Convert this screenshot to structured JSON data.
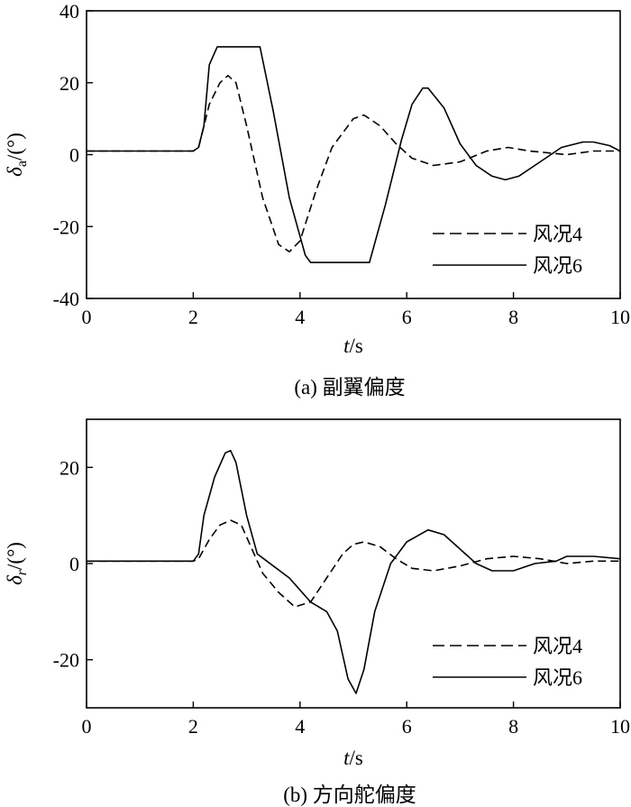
{
  "chart_data": [
    {
      "type": "line",
      "id": "a",
      "caption": "(a) 副翼偏度",
      "xlabel": "t/s",
      "ylabel": "δa/(°)",
      "xlim": [
        0,
        10
      ],
      "ylim": [
        -40,
        40
      ],
      "xticks": [
        0,
        2,
        4,
        6,
        8,
        10
      ],
      "yticks": [
        -40,
        -20,
        0,
        20,
        40
      ],
      "grid": false,
      "legend_position": "bottom-right",
      "series": [
        {
          "name": "风况4",
          "style": "dashed",
          "x": [
            0,
            2.0,
            2.1,
            2.3,
            2.5,
            2.65,
            2.8,
            3.0,
            3.3,
            3.6,
            3.8,
            4.0,
            4.3,
            4.6,
            5.0,
            5.2,
            5.5,
            5.8,
            6.1,
            6.5,
            7.0,
            7.5,
            7.9,
            8.3,
            9.0,
            9.5,
            10.0
          ],
          "y": [
            1,
            1,
            2,
            14,
            20,
            22,
            20,
            8,
            -12,
            -25,
            -27,
            -24,
            -10,
            2,
            10,
            11,
            8,
            3,
            -1,
            -3,
            -2,
            1,
            2,
            1,
            0,
            1,
            1
          ]
        },
        {
          "name": "风况6",
          "style": "solid",
          "x": [
            0,
            2.0,
            2.1,
            2.2,
            2.3,
            2.45,
            3.25,
            3.5,
            3.8,
            4.1,
            4.2,
            5.3,
            5.6,
            5.9,
            6.1,
            6.3,
            6.4,
            6.7,
            7.0,
            7.3,
            7.6,
            7.85,
            8.1,
            8.5,
            8.9,
            9.3,
            9.5,
            9.8,
            10.0
          ],
          "y": [
            1,
            1,
            2,
            8,
            25,
            30,
            30,
            12,
            -12,
            -28,
            -30,
            -30,
            -14,
            4,
            14,
            18.5,
            18.5,
            13,
            3,
            -3,
            -6,
            -7,
            -6,
            -2,
            2,
            3.5,
            3.5,
            2.5,
            1
          ]
        }
      ]
    },
    {
      "type": "line",
      "id": "b",
      "caption": "(b) 方向舵偏度",
      "xlabel": "t/s",
      "ylabel": "δr/(°)",
      "xlim": [
        0,
        10
      ],
      "ylim": [
        -30,
        30
      ],
      "xticks": [
        0,
        2,
        4,
        6,
        8,
        10
      ],
      "yticks": [
        -20,
        0,
        20
      ],
      "grid": false,
      "legend_position": "bottom-right",
      "series": [
        {
          "name": "风况4",
          "style": "dashed",
          "x": [
            0,
            2.0,
            2.1,
            2.3,
            2.5,
            2.7,
            2.9,
            3.1,
            3.3,
            3.6,
            3.9,
            4.2,
            4.5,
            4.8,
            5.0,
            5.2,
            5.5,
            5.8,
            6.1,
            6.5,
            7.0,
            7.5,
            8.0,
            8.5,
            9.0,
            9.5,
            10.0
          ],
          "y": [
            0.5,
            0.5,
            1,
            5,
            8,
            9,
            8,
            3,
            -2,
            -6,
            -9,
            -8,
            -3,
            2,
            4,
            4.5,
            3.5,
            1,
            -1,
            -1.5,
            -0.5,
            1,
            1.5,
            1,
            0,
            0.5,
            0.5
          ]
        },
        {
          "name": "风况6",
          "style": "solid",
          "x": [
            0,
            2.0,
            2.1,
            2.2,
            2.4,
            2.6,
            2.7,
            2.8,
            3.0,
            3.2,
            3.5,
            3.8,
            4.2,
            4.5,
            4.7,
            4.9,
            5.05,
            5.2,
            5.4,
            5.7,
            6.0,
            6.4,
            6.7,
            7.0,
            7.3,
            7.6,
            8.0,
            8.4,
            8.8,
            9.0,
            9.5,
            10.0
          ],
          "y": [
            0.5,
            0.5,
            2,
            10,
            18,
            23,
            23.5,
            21,
            10,
            2,
            -0.5,
            -3,
            -8,
            -10,
            -14,
            -24,
            -27,
            -22,
            -10,
            0,
            4.5,
            7,
            6,
            3,
            0,
            -1.5,
            -1.5,
            0,
            0.5,
            1.5,
            1.5,
            1
          ]
        }
      ]
    }
  ]
}
